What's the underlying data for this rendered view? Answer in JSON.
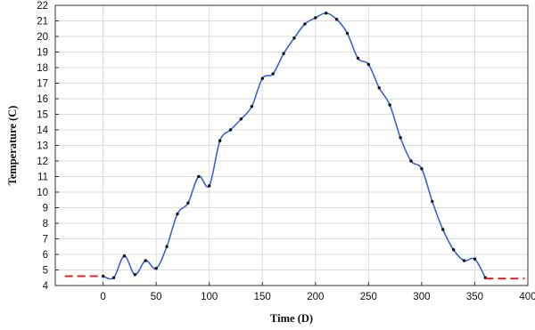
{
  "chart_data": {
    "type": "line",
    "title": "",
    "xlabel": "Time (D)",
    "ylabel": "Temperature (C)",
    "xlim": [
      -45,
      400
    ],
    "ylim": [
      4,
      22
    ],
    "x_ticks": [
      0,
      50,
      100,
      150,
      200,
      250,
      300,
      350,
      400
    ],
    "y_ticks": [
      4,
      5,
      6,
      7,
      8,
      9,
      10,
      11,
      12,
      13,
      14,
      15,
      16,
      17,
      18,
      19,
      20,
      21,
      22
    ],
    "grid": true,
    "legend": "none",
    "series": [
      {
        "color": "#3c64d2",
        "style": "solid",
        "markers": true,
        "x": [
          0,
          10,
          20,
          30,
          40,
          50,
          60,
          70,
          80,
          90,
          100,
          110,
          120,
          130,
          140,
          150,
          160,
          170,
          180,
          190,
          200,
          210,
          220,
          230,
          240,
          250,
          260,
          270,
          280,
          290,
          300,
          310,
          320,
          330,
          340,
          350,
          360
        ],
        "y": [
          4.6,
          4.5,
          5.9,
          4.7,
          5.6,
          5.1,
          6.5,
          8.6,
          9.3,
          11.0,
          10.4,
          13.3,
          14.0,
          14.7,
          15.5,
          17.3,
          17.6,
          18.9,
          19.9,
          20.8,
          21.2,
          21.5,
          21.1,
          20.2,
          18.6,
          18.2,
          16.7,
          15.6,
          13.5,
          12.0,
          11.5,
          9.4,
          7.6,
          6.3,
          5.6,
          5.7,
          4.5
        ]
      },
      {
        "color": "#e8231f",
        "style": "dashed",
        "markers": false,
        "x": [
          -36,
          0
        ],
        "y": [
          4.6,
          4.6
        ]
      },
      {
        "color": "#e8231f",
        "style": "dashed",
        "markers": false,
        "x": [
          360,
          397
        ],
        "y": [
          4.45,
          4.45
        ]
      }
    ]
  }
}
